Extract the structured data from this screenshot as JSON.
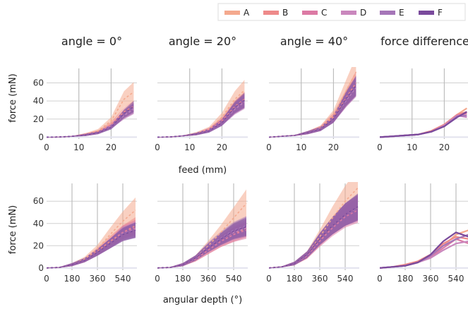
{
  "chart_data": {
    "type": "line",
    "legend": {
      "placement": "top-right",
      "entries": [
        {
          "name": "A",
          "color": "#f4a98e"
        },
        {
          "name": "B",
          "color": "#ee8a8a"
        },
        {
          "name": "C",
          "color": "#dc7aa4"
        },
        {
          "name": "D",
          "color": "#c987bd"
        },
        {
          "name": "E",
          "color": "#a576b8"
        },
        {
          "name": "F",
          "color": "#7a4a9c"
        }
      ]
    },
    "column_titles": [
      "angle = 0°",
      "angle = 20°",
      "angle = 40°",
      "force difference"
    ],
    "ylabel": "force (mN)",
    "rows": [
      {
        "xlabel": "feed (mm)",
        "xlim": [
          0,
          28
        ],
        "xticks": [
          0,
          10,
          20
        ],
        "ylim": [
          -2,
          76
        ],
        "yticks": [
          0,
          20,
          40,
          60
        ],
        "grid": true
      },
      {
        "xlabel": "angular depth (°)",
        "xlim": [
          0,
          640
        ],
        "xticks": [
          0,
          180,
          360,
          540
        ],
        "ylim": [
          -2,
          76
        ],
        "yticks": [
          0,
          20,
          40,
          60
        ],
        "grid": true
      }
    ],
    "panels": [
      {
        "row": 0,
        "col": 0,
        "x": [
          0,
          4,
          8,
          12,
          16,
          20,
          24,
          27
        ],
        "series": [
          {
            "name": "A",
            "mean": [
              0,
              0.2,
              1,
              3,
              7,
              18,
              42,
              50
            ],
            "band": [
              4,
              8
            ]
          },
          {
            "name": "B",
            "mean": [
              0,
              0.2,
              1,
              3,
              6,
              14,
              28,
              34
            ],
            "band": [
              3,
              6
            ]
          },
          {
            "name": "C",
            "mean": [
              0,
              0.2,
              1,
              2.5,
              5,
              12,
              25,
              32
            ],
            "band": [
              3,
              6
            ]
          },
          {
            "name": "D",
            "mean": [
              0,
              0.2,
              1,
              2.5,
              5,
              12,
              24,
              31
            ],
            "band": [
              3,
              6
            ]
          },
          {
            "name": "E",
            "mean": [
              0,
              0.2,
              1,
              2.5,
              5,
              11,
              25,
              32
            ],
            "band": [
              3,
              6
            ]
          },
          {
            "name": "F",
            "mean": [
              0,
              0.2,
              1,
              2.5,
              5,
              11,
              26,
              34
            ],
            "band": [
              3,
              6
            ]
          }
        ]
      },
      {
        "row": 0,
        "col": 1,
        "x": [
          0,
          4,
          8,
          12,
          16,
          20,
          24,
          27
        ],
        "series": [
          {
            "name": "A",
            "mean": [
              0,
              0.3,
              1.5,
              4,
              9,
              22,
              42,
              52
            ],
            "band": [
              5,
              8
            ]
          },
          {
            "name": "B",
            "mean": [
              0,
              0.3,
              1.5,
              3.5,
              8,
              18,
              34,
              42
            ],
            "band": [
              4,
              7
            ]
          },
          {
            "name": "C",
            "mean": [
              0,
              0.3,
              1.5,
              3.5,
              8,
              17,
              32,
              40
            ],
            "band": [
              4,
              7
            ]
          },
          {
            "name": "D",
            "mean": [
              0,
              0.3,
              1.5,
              3.5,
              7,
              16,
              31,
              39
            ],
            "band": [
              4,
              7
            ]
          },
          {
            "name": "E",
            "mean": [
              0,
              0.3,
              1.5,
              3.5,
              7,
              16,
              32,
              40
            ],
            "band": [
              4,
              7
            ]
          },
          {
            "name": "F",
            "mean": [
              0,
              0.3,
              1.5,
              3.5,
              7,
              16,
              33,
              41
            ],
            "band": [
              4,
              7
            ]
          }
        ]
      },
      {
        "row": 0,
        "col": 2,
        "x": [
          0,
          4,
          8,
          12,
          16,
          20,
          24,
          27
        ],
        "series": [
          {
            "name": "A",
            "mean": [
              0,
              1,
              2,
              5,
              10,
              24,
              52,
              72
            ],
            "band": [
              5,
              9
            ]
          },
          {
            "name": "B",
            "mean": [
              0,
              1,
              2,
              5,
              10,
              22,
              44,
              60
            ],
            "band": [
              4,
              8
            ]
          },
          {
            "name": "C",
            "mean": [
              0,
              1,
              2,
              5,
              9,
              20,
              42,
              56
            ],
            "band": [
              4,
              7
            ]
          },
          {
            "name": "D",
            "mean": [
              0,
              1,
              2,
              5,
              9,
              20,
              41,
              55
            ],
            "band": [
              4,
              7
            ]
          },
          {
            "name": "E",
            "mean": [
              0,
              1,
              2,
              5,
              9,
              20,
              42,
              56
            ],
            "band": [
              4,
              7
            ]
          },
          {
            "name": "F",
            "mean": [
              0,
              1,
              2,
              5,
              9,
              20,
              43,
              57
            ],
            "band": [
              4,
              7
            ]
          }
        ]
      },
      {
        "row": 0,
        "col": 3,
        "x": [
          0,
          4,
          8,
          12,
          16,
          20,
          24,
          27
        ],
        "series": [
          {
            "name": "A",
            "mean": [
              0,
              1,
              2,
              3,
              7,
              14,
              25,
              32
            ]
          },
          {
            "name": "B",
            "mean": [
              0,
              1,
              2,
              3,
              7,
              14,
              25,
              28
            ]
          },
          {
            "name": "C",
            "mean": [
              0,
              1,
              2,
              3,
              6,
              13,
              24,
              26
            ]
          },
          {
            "name": "D",
            "mean": [
              0,
              1,
              2,
              3,
              6,
              13,
              24,
              22
            ]
          },
          {
            "name": "E",
            "mean": [
              0,
              1,
              2,
              3,
              6,
              12,
              23,
              24
            ]
          },
          {
            "name": "F",
            "mean": [
              0,
              1,
              2,
              3,
              6,
              12,
              22,
              28
            ]
          }
        ]
      },
      {
        "row": 1,
        "col": 0,
        "x": [
          0,
          90,
          180,
          270,
          360,
          450,
          540,
          630
        ],
        "series": [
          {
            "name": "A",
            "mean": [
              0,
              0.5,
              3,
              8,
              17,
              30,
              42,
              52
            ],
            "band": [
              4,
              8
            ]
          },
          {
            "name": "B",
            "mean": [
              0,
              0.5,
              3,
              7,
              15,
              24,
              32,
              38
            ],
            "band": [
              4,
              7
            ]
          },
          {
            "name": "C",
            "mean": [
              0,
              0.5,
              3,
              7,
              14,
              22,
              32,
              36
            ],
            "band": [
              4,
              7
            ]
          },
          {
            "name": "D",
            "mean": [
              0,
              0.5,
              3,
              7,
              14,
              22,
              30,
              35
            ],
            "band": [
              4,
              7
            ]
          },
          {
            "name": "E",
            "mean": [
              0,
              0.5,
              3,
              7,
              14,
              22,
              31,
              34
            ],
            "band": [
              4,
              7
            ]
          },
          {
            "name": "F",
            "mean": [
              0,
              0.5,
              3,
              7,
              14,
              22,
              30,
              34
            ],
            "band": [
              4,
              7
            ]
          }
        ]
      },
      {
        "row": 1,
        "col": 1,
        "x": [
          0,
          90,
          180,
          270,
          360,
          450,
          540,
          630
        ],
        "series": [
          {
            "name": "A",
            "mean": [
              0,
              0.5,
              3,
              9,
              20,
              32,
              45,
              58
            ],
            "band": [
              5,
              8
            ]
          },
          {
            "name": "B",
            "mean": [
              0,
              0.5,
              3,
              8,
              16,
              24,
              30,
              36
            ],
            "band": [
              4,
              8
            ]
          },
          {
            "name": "C",
            "mean": [
              0,
              0.5,
              3,
              8,
              16,
              24,
              30,
              34
            ],
            "band": [
              4,
              8
            ]
          },
          {
            "name": "D",
            "mean": [
              0,
              0.5,
              3,
              9,
              18,
              26,
              32,
              36
            ],
            "band": [
              4,
              8
            ]
          },
          {
            "name": "E",
            "mean": [
              0,
              0.5,
              3,
              9,
              19,
              27,
              34,
              38
            ],
            "band": [
              4,
              8
            ]
          },
          {
            "name": "F",
            "mean": [
              0,
              0.5,
              3,
              9,
              18,
              26,
              33,
              37
            ],
            "band": [
              4,
              8
            ]
          }
        ]
      },
      {
        "row": 1,
        "col": 2,
        "x": [
          0,
          90,
          180,
          270,
          360,
          450,
          540,
          630
        ],
        "series": [
          {
            "name": "A",
            "mean": [
              0,
              1,
              4,
              12,
              28,
              45,
              60,
              72
            ],
            "band": [
              6,
              9
            ]
          },
          {
            "name": "B",
            "mean": [
              0,
              1,
              4,
              11,
              25,
              38,
              48,
              54
            ],
            "band": [
              5,
              8
            ]
          },
          {
            "name": "C",
            "mean": [
              0,
              1,
              4,
              11,
              24,
              36,
              46,
              52
            ],
            "band": [
              5,
              8
            ]
          },
          {
            "name": "D",
            "mean": [
              0,
              1,
              4,
              12,
              26,
              38,
              48,
              54
            ],
            "band": [
              5,
              8
            ]
          },
          {
            "name": "E",
            "mean": [
              0,
              1,
              4,
              12,
              26,
              38,
              48,
              54
            ],
            "band": [
              5,
              8
            ]
          },
          {
            "name": "F",
            "mean": [
              0,
              1,
              4,
              12,
              26,
              38,
              48,
              55
            ],
            "band": [
              5,
              8
            ]
          }
        ]
      },
      {
        "row": 1,
        "col": 3,
        "x": [
          0,
          90,
          180,
          270,
          360,
          450,
          540,
          630
        ],
        "series": [
          {
            "name": "A",
            "mean": [
              0,
              1,
              3,
              6,
              12,
              20,
              30,
              34
            ]
          },
          {
            "name": "B",
            "mean": [
              0,
              1,
              3,
              6,
              12,
              22,
              28,
              26
            ]
          },
          {
            "name": "C",
            "mean": [
              0,
              1,
              2,
              5,
              10,
              18,
              26,
              22
            ]
          },
          {
            "name": "D",
            "mean": [
              0,
              1,
              2,
              5,
              9,
              16,
              22,
              24
            ]
          },
          {
            "name": "E",
            "mean": [
              0,
              1,
              2,
              5,
              11,
              20,
              26,
              30
            ]
          },
          {
            "name": "F",
            "mean": [
              0,
              1,
              2,
              5,
              12,
              24,
              32,
              28
            ]
          }
        ]
      }
    ]
  }
}
